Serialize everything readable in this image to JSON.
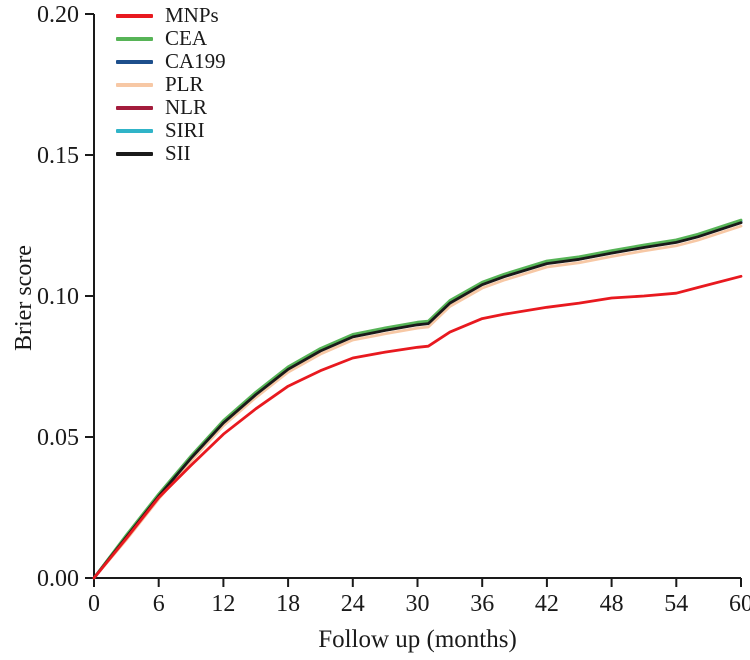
{
  "chart_data": {
    "type": "line",
    "title": "",
    "xlabel": "Follow up (months)",
    "ylabel": "Brier score",
    "xlim": [
      0,
      60
    ],
    "ylim": [
      0,
      0.2
    ],
    "x_ticks": [
      0,
      6,
      12,
      18,
      24,
      30,
      36,
      42,
      48,
      54,
      60
    ],
    "y_tick_values": [
      0,
      0.05,
      0.1,
      0.15,
      0.2
    ],
    "y_tick_labels": [
      "0.00",
      "0.05",
      "0.10",
      "0.15",
      "0.20"
    ],
    "grid": false,
    "legend_position": "top-left",
    "x": [
      0,
      3,
      6,
      9,
      12,
      15,
      18,
      21,
      24,
      27,
      30,
      31,
      33,
      36,
      38,
      42,
      45,
      48,
      51,
      54,
      56,
      60
    ],
    "series": [
      {
        "name": "MNPs",
        "color": "#e8191f",
        "values": [
          0,
          0.014,
          0.0285,
          0.04,
          0.051,
          0.06,
          0.068,
          0.0735,
          0.078,
          0.0801,
          0.0818,
          0.0822,
          0.0872,
          0.092,
          0.0935,
          0.096,
          0.0975,
          0.0993,
          0.1,
          0.101,
          0.103,
          0.107
        ]
      },
      {
        "name": "CEA",
        "color": "#57b457",
        "values": [
          0,
          0.0152,
          0.0298,
          0.0433,
          0.0558,
          0.0659,
          0.0749,
          0.0814,
          0.0864,
          0.0887,
          0.0907,
          0.0911,
          0.0984,
          0.1049,
          0.1077,
          0.1124,
          0.1139,
          0.1161,
          0.1181,
          0.1199,
          0.1219,
          0.1269
        ]
      },
      {
        "name": "CA199",
        "color": "#1d4f8c",
        "values": [
          0,
          0.0148,
          0.0293,
          0.0428,
          0.0553,
          0.0653,
          0.0743,
          0.0808,
          0.0858,
          0.0881,
          0.0901,
          0.0905,
          0.0978,
          0.1043,
          0.1071,
          0.1118,
          0.1133,
          0.1155,
          0.1175,
          0.1193,
          0.1213,
          0.1263
        ]
      },
      {
        "name": "PLR",
        "color": "#f7c8a5",
        "values": [
          0,
          0.0135,
          0.028,
          0.0415,
          0.054,
          0.064,
          0.073,
          0.0794,
          0.0844,
          0.0866,
          0.0886,
          0.089,
          0.0963,
          0.1028,
          0.1056,
          0.1103,
          0.1118,
          0.114,
          0.116,
          0.1178,
          0.1198,
          0.1248
        ]
      },
      {
        "name": "NLR",
        "color": "#a31c3c",
        "values": [
          0,
          0.0146,
          0.0291,
          0.0426,
          0.0551,
          0.0651,
          0.0741,
          0.0806,
          0.0856,
          0.0879,
          0.0899,
          0.0903,
          0.0976,
          0.1041,
          0.1069,
          0.1116,
          0.1131,
          0.1153,
          0.1173,
          0.1191,
          0.1211,
          0.1261
        ]
      },
      {
        "name": "SIRI",
        "color": "#30b4c8",
        "values": [
          0,
          0.015,
          0.0296,
          0.0431,
          0.0556,
          0.0656,
          0.0746,
          0.0811,
          0.0861,
          0.0884,
          0.0904,
          0.0908,
          0.0981,
          0.1046,
          0.1074,
          0.1121,
          0.1136,
          0.1158,
          0.1178,
          0.1196,
          0.1216,
          0.1266
        ]
      },
      {
        "name": "SII",
        "color": "#1a1a1a",
        "values": [
          0,
          0.0145,
          0.029,
          0.0425,
          0.055,
          0.065,
          0.074,
          0.0805,
          0.0855,
          0.0878,
          0.0898,
          0.0902,
          0.0975,
          0.104,
          0.1068,
          0.1115,
          0.113,
          0.1152,
          0.1172,
          0.119,
          0.121,
          0.126
        ]
      }
    ],
    "z_order": [
      "PLR",
      "NLR",
      "CA199",
      "SIRI",
      "CEA",
      "SII",
      "MNPs"
    ],
    "axis_color": "#1a1a1a"
  }
}
